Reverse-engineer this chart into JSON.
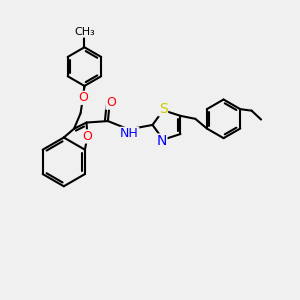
{
  "bg_color": "#f0f0f0",
  "bond_color": "#000000",
  "bond_width": 1.5,
  "atom_colors": {
    "O": "#ff0000",
    "N": "#0000ff",
    "S": "#cccc00",
    "C": "#000000"
  },
  "font_size": 9,
  "fig_size": [
    3.0,
    3.0
  ],
  "dpi": 100
}
